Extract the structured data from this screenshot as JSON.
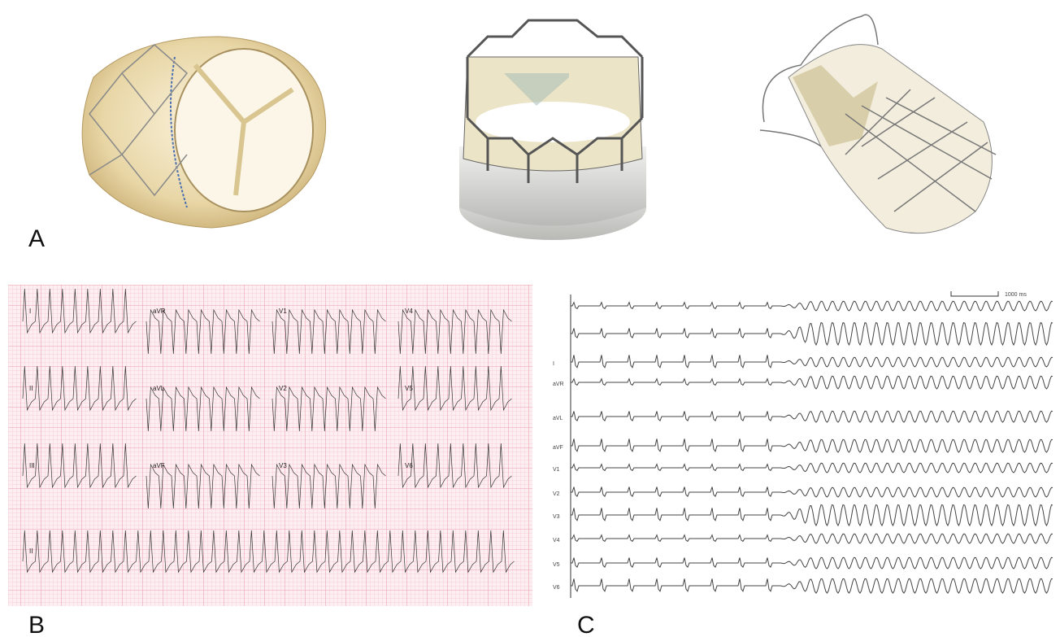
{
  "panels": {
    "a": {
      "label": "A"
    },
    "b": {
      "label": "B",
      "leads": [
        "I",
        "aVR",
        "V1",
        "V4",
        "II",
        "aVL",
        "V2",
        "V5",
        "III",
        "aVF",
        "V3",
        "V6",
        "II"
      ]
    },
    "c": {
      "label": "C",
      "scale": "1000 ms",
      "leads": [
        "I",
        "aVR",
        "aVL",
        "aVF",
        "V1",
        "V2",
        "V3",
        "V4",
        "V5",
        "V6"
      ]
    }
  }
}
